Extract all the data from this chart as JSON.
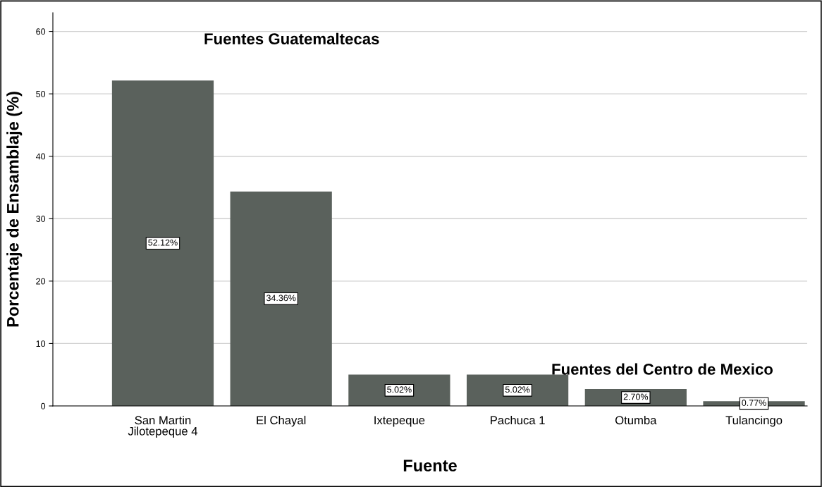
{
  "chart_data": {
    "type": "bar",
    "xlabel": "Fuente",
    "ylabel": "Porcentaje de Ensamblaje (%)",
    "categories": [
      "San Martin\nJilotepeque 4",
      "El Chayal",
      "Ixtepeque",
      "Pachuca 1",
      "Otumba",
      "Tulancingo"
    ],
    "values": [
      52.12,
      34.36,
      5.02,
      5.02,
      2.7,
      0.77
    ],
    "value_labels": [
      "52.12%",
      "34.36%",
      "5.02%",
      "5.02%",
      "2.70%",
      "0.77%"
    ],
    "color": "#5a615c",
    "ylim": [
      0,
      63
    ],
    "yticks": [
      0,
      10,
      20,
      30,
      40,
      50,
      60
    ],
    "grid": "y",
    "annotations": [
      "Fuentes Guatemaltecas",
      "Fuentes del Centro de Mexico"
    ]
  }
}
